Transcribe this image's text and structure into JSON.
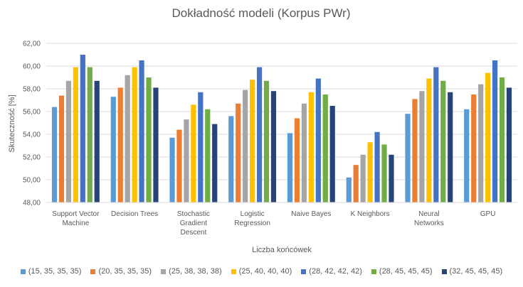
{
  "chart_data": {
    "type": "bar",
    "title": "Dokładność modeli (Korpus PWr)",
    "xlabel": "Liczba końcówek",
    "ylabel": "Skuteczność [%]",
    "ylim": [
      48,
      62
    ],
    "yticks": [
      "48,00",
      "50,00",
      "52,00",
      "54,00",
      "56,00",
      "58,00",
      "60,00",
      "62,00"
    ],
    "grid": true,
    "legend_position": "bottom",
    "categories": [
      [
        "Support Vector",
        "Machine"
      ],
      [
        "Decision Trees"
      ],
      [
        "Stochastic",
        "Gradient",
        "Descent"
      ],
      [
        "Logistic",
        "Regression"
      ],
      [
        "Naive Bayes"
      ],
      [
        "K Neighbors"
      ],
      [
        "Neural",
        "Networks"
      ],
      [
        "GPU"
      ]
    ],
    "series": [
      {
        "name": "(15, 35, 35, 35)",
        "color": "#5B9BD5",
        "values": [
          56.4,
          57.3,
          53.7,
          55.6,
          54.1,
          50.2,
          55.8,
          56.2
        ]
      },
      {
        "name": "(20, 35, 35, 35)",
        "color": "#ED7D31",
        "values": [
          57.4,
          58.1,
          54.4,
          56.7,
          55.4,
          51.3,
          57.1,
          57.5
        ]
      },
      {
        "name": "(25, 38, 38, 38)",
        "color": "#A5A5A5",
        "values": [
          58.7,
          59.2,
          55.3,
          57.9,
          56.7,
          52.2,
          57.8,
          58.4
        ]
      },
      {
        "name": "(25, 40, 40, 40)",
        "color": "#FFC000",
        "values": [
          59.9,
          59.9,
          56.6,
          58.8,
          57.7,
          53.3,
          58.9,
          59.4
        ]
      },
      {
        "name": "(28, 42, 42, 42)",
        "color": "#4472C4",
        "values": [
          61.0,
          60.5,
          57.7,
          59.9,
          58.9,
          54.2,
          59.9,
          60.5
        ]
      },
      {
        "name": "(28, 45, 45, 45)",
        "color": "#70AD47",
        "values": [
          59.9,
          59.0,
          56.2,
          58.7,
          57.5,
          53.1,
          58.7,
          59.0
        ]
      },
      {
        "name": "(32, 45, 45, 45)",
        "color": "#264478",
        "values": [
          58.7,
          58.1,
          54.9,
          57.8,
          56.5,
          52.2,
          57.7,
          58.1
        ]
      }
    ]
  }
}
